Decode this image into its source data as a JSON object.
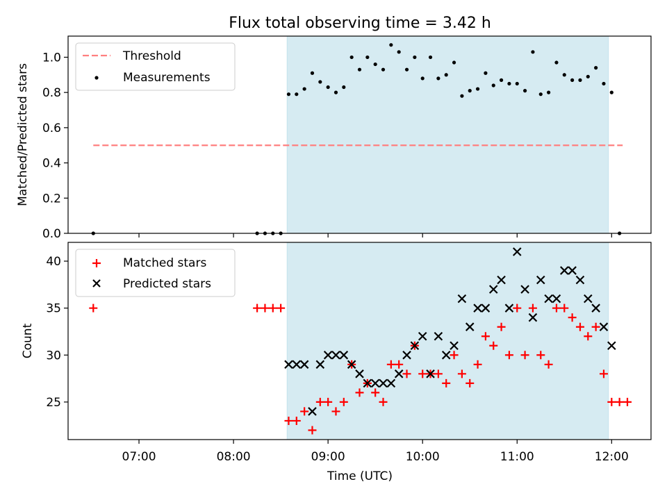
{
  "figure": {
    "title": "Flux total observing time = 3.42 h",
    "shaded_interval": {
      "start": "08:34",
      "end": "11:58",
      "color": "#add8e6"
    }
  },
  "colors": {
    "threshold": "#ff7f7f",
    "measurements": "#000000",
    "matched": "#ff0000",
    "predicted": "#000000",
    "shade": "#add8e6"
  },
  "chart_data": [
    {
      "type": "scatter",
      "title": "Flux total observing time = 3.42 h",
      "xlabel": "",
      "ylabel": "Matched/Predicted stars",
      "xlim": [
        "06:15",
        "12:25"
      ],
      "ylim": [
        0,
        1.12
      ],
      "yticks": [
        "0.0",
        "0.2",
        "0.4",
        "0.6",
        "0.8",
        "1.0"
      ],
      "xticks": [
        "07:00",
        "08:00",
        "09:00",
        "10:00",
        "11:00",
        "12:00"
      ],
      "legend": {
        "placement": "top-left",
        "entries": [
          "Threshold",
          "Measurements"
        ]
      },
      "threshold": {
        "name": "Threshold",
        "value": 0.5,
        "x_range": [
          "06:31",
          "12:07"
        ]
      },
      "series": [
        {
          "name": "Measurements",
          "x": [
            "06:31",
            "08:15",
            "08:20",
            "08:25",
            "08:30",
            "08:35",
            "08:40",
            "08:45",
            "08:50",
            "08:55",
            "09:00",
            "09:05",
            "09:10",
            "09:15",
            "09:20",
            "09:25",
            "09:30",
            "09:35",
            "09:40",
            "09:45",
            "09:50",
            "09:55",
            "10:00",
            "10:05",
            "10:10",
            "10:15",
            "10:20",
            "10:25",
            "10:30",
            "10:35",
            "10:40",
            "10:45",
            "10:50",
            "10:55",
            "11:00",
            "11:05",
            "11:10",
            "11:15",
            "11:20",
            "11:25",
            "11:30",
            "11:35",
            "11:40",
            "11:45",
            "11:50",
            "11:55",
            "12:00",
            "12:05"
          ],
          "y": [
            0,
            0,
            0,
            0,
            0,
            0.79,
            0.79,
            0.82,
            0.91,
            0.86,
            0.83,
            0.8,
            0.83,
            1.0,
            0.93,
            1.0,
            0.96,
            0.93,
            1.07,
            1.03,
            0.93,
            1.0,
            0.88,
            1.0,
            0.88,
            0.9,
            0.97,
            0.78,
            0.81,
            0.82,
            0.91,
            0.84,
            0.87,
            0.85,
            0.85,
            0.81,
            1.03,
            0.79,
            0.8,
            0.97,
            0.9,
            0.87,
            0.87,
            0.89,
            0.94,
            0.85,
            0.8,
            0
          ]
        }
      ]
    },
    {
      "type": "scatter",
      "title": "",
      "xlabel": "Time (UTC)",
      "ylabel": "Count",
      "xlim": [
        "06:15",
        "12:25"
      ],
      "ylim": [
        21,
        42
      ],
      "yticks": [
        "25",
        "30",
        "35",
        "40"
      ],
      "xticks": [
        "07:00",
        "08:00",
        "09:00",
        "10:00",
        "11:00",
        "12:00"
      ],
      "legend": {
        "placement": "top-left",
        "entries": [
          "Matched stars",
          "Predicted stars"
        ]
      },
      "series": [
        {
          "name": "Matched stars",
          "x": [
            "06:31",
            "08:15",
            "08:20",
            "08:25",
            "08:30",
            "08:35",
            "08:40",
            "08:45",
            "08:50",
            "08:55",
            "09:00",
            "09:05",
            "09:10",
            "09:15",
            "09:20",
            "09:25",
            "09:30",
            "09:35",
            "09:40",
            "09:45",
            "09:50",
            "09:55",
            "10:00",
            "10:05",
            "10:10",
            "10:15",
            "10:20",
            "10:25",
            "10:30",
            "10:35",
            "10:40",
            "10:45",
            "10:50",
            "10:55",
            "11:00",
            "11:05",
            "11:10",
            "11:15",
            "11:20",
            "11:25",
            "11:30",
            "11:35",
            "11:40",
            "11:45",
            "11:50",
            "11:55",
            "12:00",
            "12:05",
            "12:10"
          ],
          "y": [
            35,
            35,
            35,
            35,
            35,
            23,
            23,
            24,
            22,
            25,
            25,
            24,
            25,
            29,
            26,
            27,
            26,
            25,
            29,
            29,
            28,
            31,
            28,
            28,
            28,
            27,
            30,
            28,
            27,
            29,
            32,
            31,
            33,
            30,
            35,
            30,
            35,
            30,
            29,
            35,
            35,
            34,
            33,
            32,
            33,
            28,
            25,
            25,
            25
          ]
        },
        {
          "name": "Predicted stars",
          "x": [
            "08:35",
            "08:40",
            "08:45",
            "08:50",
            "08:55",
            "09:00",
            "09:05",
            "09:10",
            "09:15",
            "09:20",
            "09:25",
            "09:30",
            "09:35",
            "09:40",
            "09:45",
            "09:50",
            "09:55",
            "10:00",
            "10:05",
            "10:10",
            "10:15",
            "10:20",
            "10:25",
            "10:30",
            "10:35",
            "10:40",
            "10:45",
            "10:50",
            "10:55",
            "11:00",
            "11:05",
            "11:10",
            "11:15",
            "11:20",
            "11:25",
            "11:30",
            "11:35",
            "11:40",
            "11:45",
            "11:50",
            "11:55",
            "12:00"
          ],
          "y": [
            29,
            29,
            29,
            24,
            29,
            30,
            30,
            30,
            29,
            28,
            27,
            27,
            27,
            27,
            28,
            30,
            31,
            32,
            28,
            32,
            30,
            31,
            36,
            33,
            35,
            35,
            37,
            38,
            35,
            41,
            37,
            34,
            38,
            36,
            36,
            39,
            39,
            38,
            36,
            35,
            33,
            31
          ]
        }
      ]
    }
  ]
}
